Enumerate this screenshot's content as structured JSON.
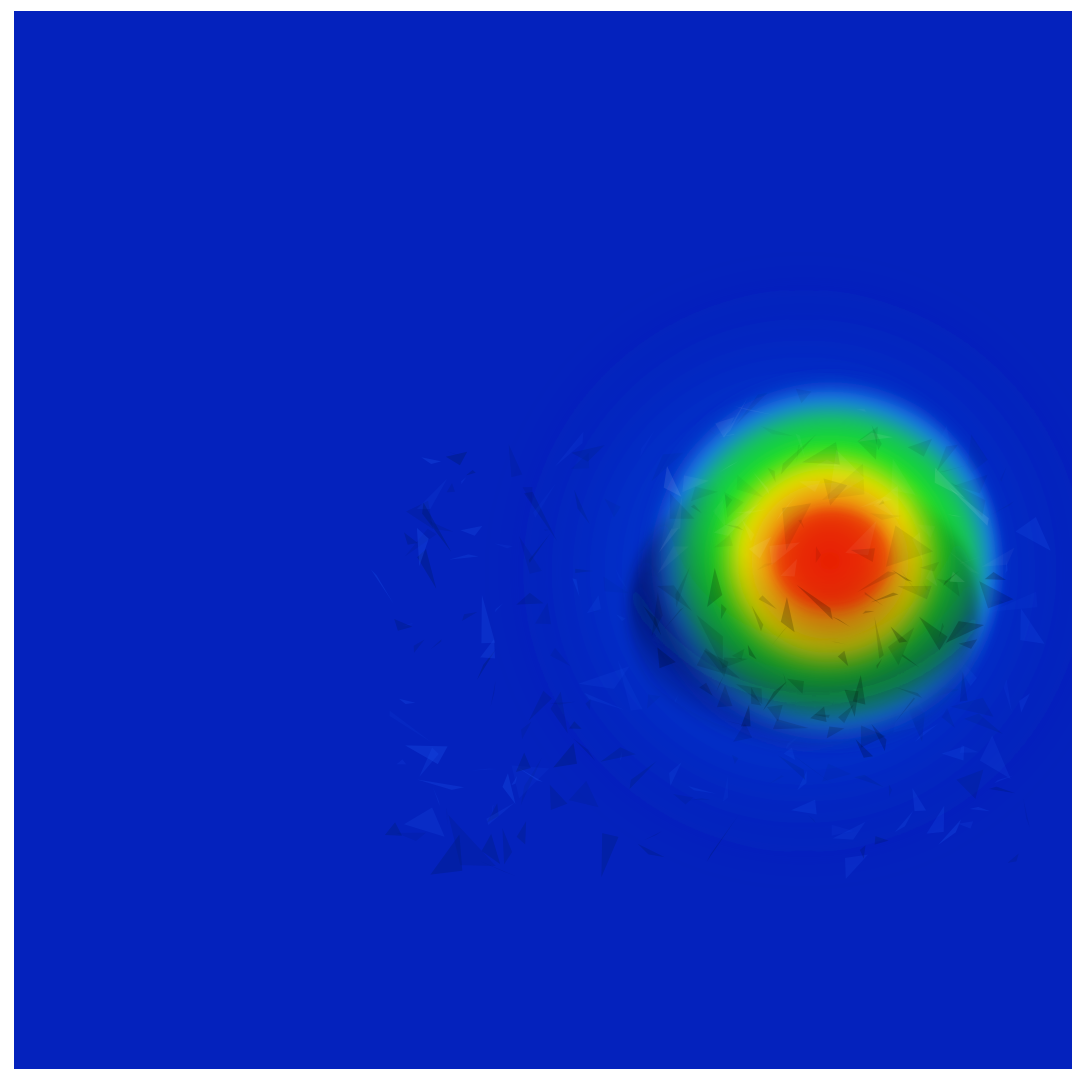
{
  "scene": {
    "background_color": "#0422bd",
    "colormap": [
      "#0422bd",
      "#1f78e6",
      "#09ea34",
      "#0fb72a",
      "#e7e400",
      "#ed6a0a",
      "#e81f05"
    ],
    "shadow_color": "#001a5a"
  }
}
